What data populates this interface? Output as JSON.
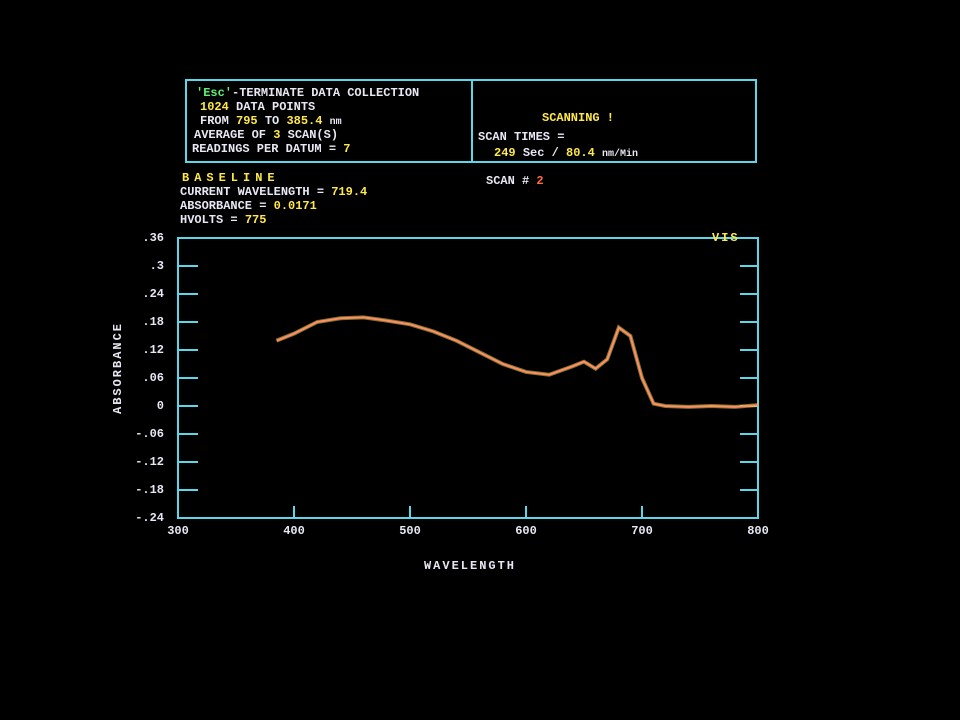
{
  "info": {
    "esc": "'Esc'",
    "esc_text": "-TERMINATE DATA COLLECTION",
    "points": "1024",
    "points_label": "DATA POINTS",
    "from_label": "FROM",
    "from": "795",
    "to_label": "TO",
    "to": "385.4",
    "unit": "nm",
    "avg_label": "AVERAGE OF",
    "avg": "3",
    "avg_unit": "SCAN(S)",
    "readings_label": "READINGS PER DATUM =",
    "readings": "7"
  },
  "status": {
    "title": "SCANNING !",
    "scan_times_label": "SCAN TIMES =",
    "seconds": "249",
    "seconds_unit": "Sec /",
    "rate": "80.4",
    "rate_unit": "nm/Min",
    "scan_label": "SCAN #",
    "scan": "2"
  },
  "readout": {
    "title": "BASELINE",
    "wavelength_label": "CURRENT WAVELENGTH =",
    "wavelength": "719.4",
    "absorbance_label": "ABSORBANCE =",
    "absorbance": "0.0171",
    "hvolts_label": "HVOLTS =",
    "hvolts": "775"
  },
  "chart_data": {
    "type": "line",
    "region": "VIS",
    "x_label": "WAVELENGTH",
    "y_label": "ABSORBANCE",
    "xlim": [
      300,
      800
    ],
    "ylim": [
      -0.24,
      0.36
    ],
    "xticks": [
      300,
      400,
      500,
      600,
      700,
      800
    ],
    "yticks": [
      {
        "value": 0.36,
        "label": ".36"
      },
      {
        "value": 0.3,
        "label": ".3"
      },
      {
        "value": 0.24,
        "label": ".24"
      },
      {
        "value": 0.18,
        "label": ".18"
      },
      {
        "value": 0.12,
        "label": ".12"
      },
      {
        "value": 0.06,
        "label": ".06"
      },
      0,
      {
        "value": -0.06,
        "label": "-.06"
      },
      {
        "value": -0.12,
        "label": "-.12"
      },
      {
        "value": -0.18,
        "label": "-.18"
      },
      {
        "value": -0.24,
        "label": "-.24"
      }
    ],
    "grid": false,
    "x": [
      385,
      400,
      420,
      440,
      460,
      480,
      500,
      520,
      540,
      560,
      580,
      600,
      620,
      640,
      650,
      660,
      670,
      680,
      690,
      700,
      710,
      720,
      740,
      760,
      780,
      800
    ],
    "series": [
      {
        "color": "#ff8c6a",
        "values": [
          0.14,
          0.155,
          0.18,
          0.188,
          0.19,
          0.183,
          0.175,
          0.16,
          0.14,
          0.115,
          0.09,
          0.073,
          0.067,
          0.085,
          0.095,
          0.08,
          0.1,
          0.168,
          0.15,
          0.06,
          0.005,
          0.0,
          -0.002,
          0.0,
          -0.002,
          0.002
        ]
      }
    ]
  }
}
